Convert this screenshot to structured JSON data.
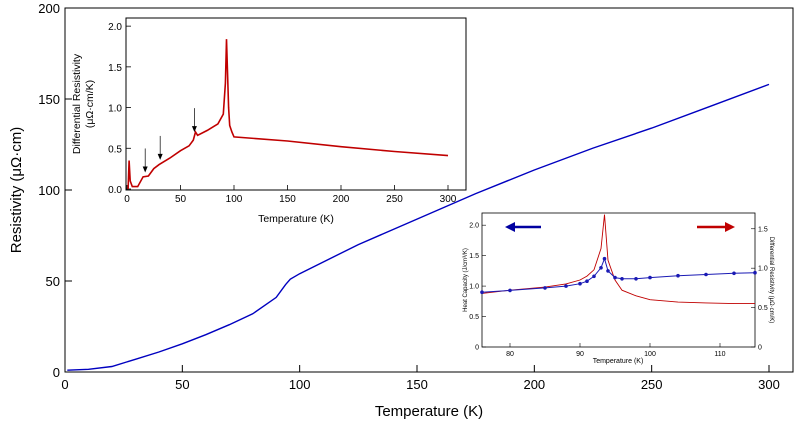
{
  "chart_data": [
    {
      "id": "main",
      "type": "line",
      "title": "",
      "xlabel": "Temperature (K)",
      "ylabel": "Resistivity (μΩ·cm)",
      "xlim": [
        0,
        300
      ],
      "ylim": [
        0,
        200
      ],
      "xticks": [
        "0",
        "50",
        "100",
        "150",
        "200",
        "250",
        "300"
      ],
      "yticks": [
        "0",
        "50",
        "100",
        "150",
        "200"
      ],
      "series": [
        {
          "name": "Resistivity",
          "color": "#0000c0",
          "points": [
            [
              1,
              1
            ],
            [
              10,
              1.5
            ],
            [
              20,
              3
            ],
            [
              30,
              7
            ],
            [
              40,
              11
            ],
            [
              50,
              15.5
            ],
            [
              60,
              20.5
            ],
            [
              70,
              26
            ],
            [
              80,
              32
            ],
            [
              90,
              41
            ],
            [
              94,
              48
            ],
            [
              96,
              51
            ],
            [
              100,
              54
            ],
            [
              125,
              70
            ],
            [
              150,
              84
            ],
            [
              175,
              98
            ],
            [
              200,
              111
            ],
            [
              225,
              123
            ],
            [
              250,
              134
            ],
            [
              275,
              146
            ],
            [
              300,
              158
            ]
          ]
        }
      ]
    },
    {
      "id": "inset-differential",
      "type": "line",
      "xlabel": "Temperature (K)",
      "ylabel": "Differential Resistivity",
      "ylabel_units": "(μΩ·cm/K)",
      "xlim": [
        0,
        300
      ],
      "ylim": [
        0,
        2.1
      ],
      "xticks": [
        "0",
        "50",
        "100",
        "150",
        "200",
        "250",
        "300"
      ],
      "yticks": [
        "0.0",
        "0.5",
        "1.0",
        "1.5",
        "2.0"
      ],
      "arrows_at_temperature_K": [
        17,
        31,
        63
      ],
      "series": [
        {
          "name": "dρ/dT",
          "color": "#c00000",
          "points": [
            [
              1,
              0.0
            ],
            [
              2,
              0.35
            ],
            [
              3,
              0.1
            ],
            [
              5,
              0.03
            ],
            [
              10,
              0.03
            ],
            [
              15,
              0.15
            ],
            [
              20,
              0.16
            ],
            [
              25,
              0.25
            ],
            [
              30,
              0.3
            ],
            [
              40,
              0.38
            ],
            [
              50,
              0.47
            ],
            [
              58,
              0.53
            ],
            [
              62,
              0.6
            ],
            [
              64,
              0.7
            ],
            [
              66,
              0.66
            ],
            [
              75,
              0.72
            ],
            [
              85,
              0.8
            ],
            [
              90,
              0.92
            ],
            [
              92,
              1.3
            ],
            [
              93,
              1.84
            ],
            [
              94,
              1.4
            ],
            [
              95,
              1.0
            ],
            [
              96,
              0.78
            ],
            [
              98,
              0.7
            ],
            [
              100,
              0.64
            ],
            [
              150,
              0.59
            ],
            [
              200,
              0.52
            ],
            [
              250,
              0.46
            ],
            [
              300,
              0.41
            ]
          ]
        }
      ]
    },
    {
      "id": "inset-heat-capacity",
      "type": "line",
      "xlabel": "Temperature (K)",
      "ylabel_left": "Heat Capacity (J/cm³/K)",
      "ylabel_right": "Differential Resistivity (μΩ·cm/K)",
      "xlim": [
        76,
        115
      ],
      "ylim_left": [
        0,
        2.2
      ],
      "ylim_right": [
        0,
        1.7
      ],
      "xticks": [
        "80",
        "90",
        "100",
        "110"
      ],
      "yticks_left": [
        "0",
        "0.5",
        "1.0",
        "1.5",
        "2.0"
      ],
      "yticks_right": [
        "0",
        "0.5",
        "1.0",
        "1.5"
      ],
      "arrow_left_color": "#0000a0",
      "arrow_right_color": "#c00000",
      "series": [
        {
          "name": "Heat Capacity",
          "axis": "left",
          "color": "#1a1ab4",
          "points": [
            [
              76,
              0.9
            ],
            [
              80,
              0.93
            ],
            [
              85,
              0.97
            ],
            [
              88,
              1.0
            ],
            [
              90,
              1.04
            ],
            [
              91,
              1.08
            ],
            [
              92,
              1.16
            ],
            [
              93,
              1.3
            ],
            [
              93.5,
              1.45
            ],
            [
              94,
              1.25
            ],
            [
              95,
              1.14
            ],
            [
              96,
              1.12
            ],
            [
              98,
              1.12
            ],
            [
              100,
              1.14
            ],
            [
              104,
              1.17
            ],
            [
              108,
              1.19
            ],
            [
              112,
              1.21
            ],
            [
              115,
              1.22
            ]
          ]
        },
        {
          "name": "Differential Resistivity",
          "axis": "right",
          "color": "#c00000",
          "points": [
            [
              76,
              0.68
            ],
            [
              80,
              0.72
            ],
            [
              85,
              0.76
            ],
            [
              88,
              0.8
            ],
            [
              90,
              0.85
            ],
            [
              91,
              0.9
            ],
            [
              92,
              0.98
            ],
            [
              93,
              1.25
            ],
            [
              93.5,
              1.68
            ],
            [
              94,
              1.1
            ],
            [
              95,
              0.85
            ],
            [
              96,
              0.72
            ],
            [
              98,
              0.65
            ],
            [
              100,
              0.6
            ],
            [
              104,
              0.57
            ],
            [
              108,
              0.56
            ],
            [
              112,
              0.55
            ],
            [
              115,
              0.55
            ]
          ]
        }
      ]
    }
  ]
}
